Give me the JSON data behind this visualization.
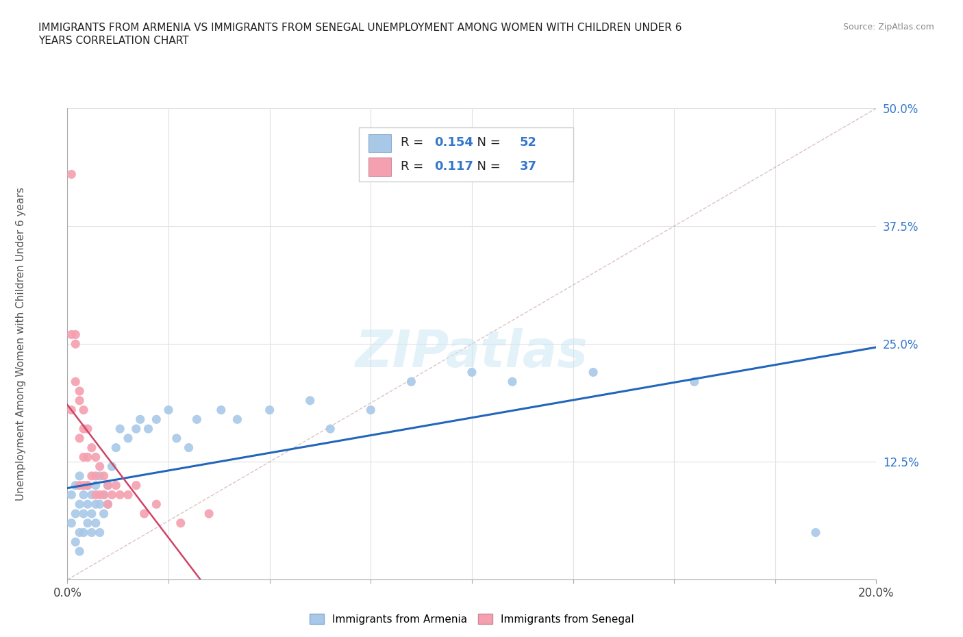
{
  "title": "IMMIGRANTS FROM ARMENIA VS IMMIGRANTS FROM SENEGAL UNEMPLOYMENT AMONG WOMEN WITH CHILDREN UNDER 6\nYEARS CORRELATION CHART",
  "source": "Source: ZipAtlas.com",
  "ylabel": "Unemployment Among Women with Children Under 6 years",
  "xlim": [
    0.0,
    0.2
  ],
  "ylim": [
    0.0,
    0.5
  ],
  "xticks": [
    0.0,
    0.025,
    0.05,
    0.075,
    0.1,
    0.125,
    0.15,
    0.175,
    0.2
  ],
  "yticks": [
    0.0,
    0.125,
    0.25,
    0.375,
    0.5
  ],
  "ytick_labels": [
    "",
    "12.5%",
    "25.0%",
    "37.5%",
    "50.0%"
  ],
  "xtick_labels": [
    "0.0%",
    "",
    "",
    "",
    "",
    "",
    "",
    "",
    "20.0%"
  ],
  "armenia_color": "#a8c8e8",
  "senegal_color": "#f4a0b0",
  "armenia_line_color": "#2266bb",
  "senegal_line_color": "#cc4466",
  "diagonal_color": "#ddaaaa",
  "R_armenia": 0.154,
  "N_armenia": 52,
  "R_senegal": 0.117,
  "N_senegal": 37,
  "watermark": "ZIPatlas",
  "armenia_x": [
    0.001,
    0.001,
    0.002,
    0.002,
    0.002,
    0.003,
    0.003,
    0.003,
    0.003,
    0.004,
    0.004,
    0.004,
    0.005,
    0.005,
    0.005,
    0.006,
    0.006,
    0.006,
    0.007,
    0.007,
    0.007,
    0.008,
    0.008,
    0.008,
    0.009,
    0.009,
    0.01,
    0.01,
    0.011,
    0.012,
    0.013,
    0.015,
    0.017,
    0.018,
    0.02,
    0.022,
    0.025,
    0.027,
    0.03,
    0.032,
    0.038,
    0.042,
    0.05,
    0.06,
    0.065,
    0.075,
    0.085,
    0.1,
    0.11,
    0.13,
    0.155,
    0.185
  ],
  "armenia_y": [
    0.09,
    0.06,
    0.1,
    0.07,
    0.04,
    0.11,
    0.08,
    0.05,
    0.03,
    0.09,
    0.07,
    0.05,
    0.1,
    0.08,
    0.06,
    0.09,
    0.07,
    0.05,
    0.1,
    0.08,
    0.06,
    0.11,
    0.08,
    0.05,
    0.09,
    0.07,
    0.1,
    0.08,
    0.12,
    0.14,
    0.16,
    0.15,
    0.16,
    0.17,
    0.16,
    0.17,
    0.18,
    0.15,
    0.14,
    0.17,
    0.18,
    0.17,
    0.18,
    0.19,
    0.16,
    0.18,
    0.21,
    0.22,
    0.21,
    0.22,
    0.21,
    0.05
  ],
  "senegal_x": [
    0.001,
    0.001,
    0.001,
    0.002,
    0.002,
    0.002,
    0.003,
    0.003,
    0.003,
    0.003,
    0.004,
    0.004,
    0.004,
    0.004,
    0.005,
    0.005,
    0.005,
    0.006,
    0.006,
    0.007,
    0.007,
    0.007,
    0.008,
    0.008,
    0.009,
    0.009,
    0.01,
    0.01,
    0.011,
    0.012,
    0.013,
    0.015,
    0.017,
    0.019,
    0.022,
    0.028,
    0.035
  ],
  "senegal_y": [
    0.43,
    0.26,
    0.18,
    0.25,
    0.26,
    0.21,
    0.2,
    0.19,
    0.15,
    0.1,
    0.18,
    0.16,
    0.13,
    0.1,
    0.16,
    0.13,
    0.1,
    0.14,
    0.11,
    0.13,
    0.11,
    0.09,
    0.12,
    0.09,
    0.11,
    0.09,
    0.1,
    0.08,
    0.09,
    0.1,
    0.09,
    0.09,
    0.1,
    0.07,
    0.08,
    0.06,
    0.07
  ]
}
